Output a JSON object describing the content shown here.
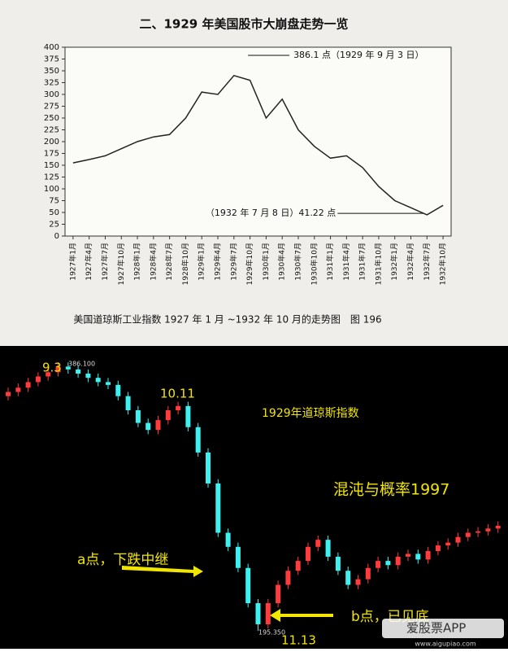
{
  "chart_data": [
    {
      "type": "line",
      "title": "二、1929 年美国股市大崩盘走势一览",
      "caption": "美国道琼斯工业指数 1927 年 1 月 ~1932 年 10 月的走势图　图 196",
      "categories": [
        "1927年1月",
        "1927年4月",
        "1927年7月",
        "1927年10月",
        "1928年1月",
        "1928年4月",
        "1928年7月",
        "1928年10月",
        "1929年1月",
        "1929年4月",
        "1929年7月",
        "1929年10月",
        "1930年1月",
        "1930年4月",
        "1930年7月",
        "1930年10月",
        "1931年1月",
        "1931年4月",
        "1931年7月",
        "1931年10月",
        "1932年1月",
        "1932年4月",
        "1932年7月",
        "1932年10月"
      ],
      "series": [
        {
          "name": "道琼斯工业指数",
          "color": "#222222",
          "values": [
            155,
            162,
            170,
            185,
            200,
            210,
            215,
            250,
            305,
            300,
            340,
            330,
            250,
            290,
            225,
            190,
            165,
            170,
            145,
            105,
            75,
            60,
            45,
            65
          ]
        }
      ],
      "ylim": [
        0,
        400
      ],
      "yticks": [
        0,
        25,
        50,
        75,
        100,
        125,
        150,
        175,
        200,
        225,
        250,
        275,
        300,
        325,
        350,
        375,
        400
      ],
      "annotations": [
        {
          "text": "386.1 点（1929 年 9 月 3 日）",
          "value": 386.1
        },
        {
          "text": "（1932 年 7 月 8 日）41.22 点",
          "value": 41.22
        }
      ]
    },
    {
      "type": "candlestick",
      "title": "1929年道琼斯指数",
      "subtitle": "混沌与概率1997",
      "up_color": "#ff3b3b",
      "down_color": "#3ff0f0",
      "open": [
        362,
        365,
        368,
        372,
        376,
        379,
        383,
        381,
        378,
        375,
        372,
        370,
        362,
        352,
        343,
        338,
        345,
        352,
        355,
        340,
        322,
        300,
        265,
        255,
        240,
        215,
        200,
        215,
        228,
        238,
        245,
        255,
        260,
        248,
        238,
        228,
        232,
        240,
        245,
        242,
        248,
        250,
        246,
        252,
        256,
        258,
        262,
        265,
        266,
        268
      ],
      "close": [
        365,
        368,
        372,
        376,
        379,
        383,
        381,
        378,
        375,
        372,
        370,
        362,
        352,
        343,
        338,
        345,
        352,
        355,
        340,
        322,
        300,
        265,
        255,
        240,
        215,
        200,
        215,
        228,
        238,
        245,
        255,
        260,
        248,
        238,
        228,
        232,
        240,
        245,
        242,
        248,
        250,
        246,
        252,
        256,
        258,
        262,
        265,
        266,
        268,
        270
      ],
      "high": [
        368,
        371,
        375,
        379,
        382,
        386.1,
        386,
        384,
        381,
        378,
        375,
        373,
        365,
        355,
        346,
        348,
        355,
        358,
        358,
        343,
        325,
        303,
        268,
        258,
        243,
        218,
        218,
        231,
        241,
        248,
        258,
        263,
        263,
        251,
        241,
        235,
        243,
        248,
        248,
        251,
        253,
        253,
        255,
        259,
        261,
        265,
        268,
        269,
        271,
        273
      ],
      "low": [
        359,
        362,
        365,
        369,
        373,
        376,
        378,
        375,
        372,
        369,
        367,
        359,
        349,
        340,
        335,
        335,
        342,
        349,
        337,
        319,
        297,
        262,
        252,
        237,
        212,
        195.35,
        197,
        212,
        225,
        235,
        242,
        252,
        245,
        235,
        225,
        225,
        229,
        237,
        239,
        239,
        245,
        243,
        243,
        249,
        253,
        255,
        259,
        262,
        263,
        265
      ],
      "annotations": {
        "peak_date": "9.3",
        "peak_value": "386.100",
        "rebound_date": "10.11",
        "point_a": "a点，下跌中继",
        "point_b": "b点，已见底",
        "low_date": "11.13",
        "low_value": "195.350"
      },
      "watermark": {
        "app": "爱股票APP",
        "url": "www.aigupiao.com"
      }
    }
  ]
}
